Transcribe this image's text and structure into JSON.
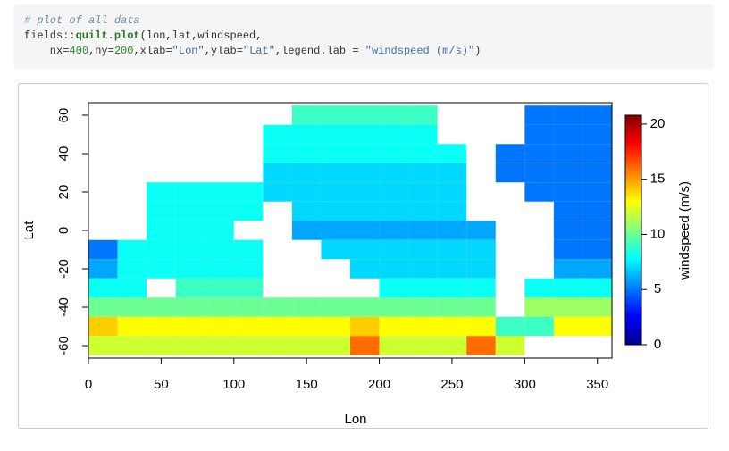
{
  "code": {
    "lines": [
      [
        "# plot of all data"
      ],
      [
        "fields::",
        "quilt.plot",
        "(lon,lat,windspeed,"
      ],
      [
        "    nx=",
        "400",
        ",ny=",
        "200",
        ",xlab=",
        "\"Lon\"",
        ",ylab=",
        "\"Lat\"",
        ",legend.lab = ",
        "\"windspeed (m/s)\"",
        ")"
      ]
    ]
  },
  "chart_data": {
    "type": "heatmap",
    "xlabel": "Lon",
    "ylabel": "Lat",
    "legend_label": "windspeed (m/s)",
    "xlim": [
      0,
      360
    ],
    "xticks": [
      0,
      50,
      100,
      150,
      200,
      250,
      300,
      350
    ],
    "ylim": [
      -66.5,
      66.5
    ],
    "yticks": [
      -60,
      -40,
      -20,
      0,
      20,
      40,
      60
    ],
    "zlim": [
      0,
      20.8
    ],
    "zticks": [
      0,
      5,
      10,
      15,
      20
    ],
    "colorscale": [
      "#00008F",
      "#0000FF",
      "#0080FF",
      "#00FFFF",
      "#80FF80",
      "#FFFF00",
      "#FF8000",
      "#FF0000",
      "#800000"
    ],
    "x": [
      10,
      30,
      50,
      70,
      90,
      110,
      130,
      150,
      170,
      190,
      210,
      230,
      250,
      270,
      290,
      310,
      330,
      350
    ],
    "y": [
      60,
      50,
      40,
      30,
      20,
      10,
      0,
      -10,
      -20,
      -30,
      -40,
      -50,
      -60
    ],
    "cell_width": 20,
    "cell_height": 10,
    "values": [
      [
        null,
        null,
        null,
        null,
        null,
        null,
        null,
        9,
        9,
        9,
        9,
        9,
        null,
        null,
        null,
        5,
        5,
        5
      ],
      [
        null,
        null,
        null,
        null,
        null,
        null,
        8,
        8,
        8,
        8,
        8,
        8,
        null,
        null,
        null,
        5,
        5,
        5
      ],
      [
        null,
        null,
        null,
        null,
        null,
        null,
        8,
        8,
        8,
        8,
        8,
        8,
        8,
        null,
        5,
        5,
        5,
        5
      ],
      [
        null,
        null,
        null,
        null,
        null,
        null,
        7,
        7,
        7,
        7,
        7,
        7,
        7,
        null,
        5,
        5,
        5,
        5
      ],
      [
        null,
        null,
        8,
        8,
        8,
        8,
        7,
        7,
        7,
        7,
        7,
        7,
        7,
        null,
        null,
        5,
        5,
        5
      ],
      [
        null,
        null,
        8,
        8,
        8,
        8,
        null,
        7,
        7,
        7,
        7,
        7,
        7,
        null,
        null,
        null,
        5,
        5
      ],
      [
        null,
        null,
        8,
        8,
        8,
        null,
        null,
        6,
        6,
        6,
        6,
        6,
        6,
        6,
        null,
        null,
        5,
        5
      ],
      [
        5,
        8,
        8,
        8,
        8,
        8,
        null,
        null,
        7,
        7,
        7,
        7,
        7,
        7,
        null,
        null,
        5,
        5
      ],
      [
        6,
        8,
        8,
        8,
        8,
        8,
        null,
        null,
        null,
        7,
        7,
        7,
        7,
        7,
        null,
        null,
        6,
        6
      ],
      [
        8,
        8,
        null,
        9,
        9,
        9,
        null,
        null,
        null,
        null,
        8,
        8,
        8,
        8,
        null,
        8,
        8,
        8
      ],
      [
        10,
        10,
        10,
        10,
        10,
        10,
        10,
        10,
        10,
        10,
        10,
        10,
        10,
        10,
        null,
        11,
        11,
        11
      ],
      [
        14,
        13,
        13,
        13,
        13,
        13,
        13,
        13,
        13,
        14,
        13,
        13,
        13,
        13,
        9,
        9,
        13,
        13
      ],
      [
        12,
        12,
        12,
        12,
        12,
        12,
        12,
        12,
        12,
        16,
        12,
        12,
        12,
        16,
        12,
        null,
        null,
        null
      ]
    ]
  }
}
